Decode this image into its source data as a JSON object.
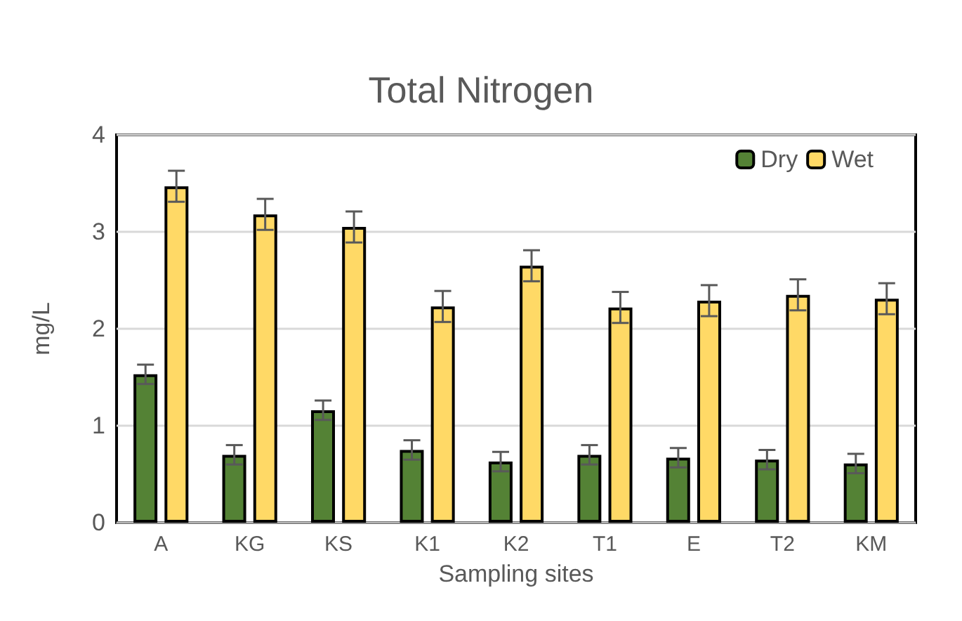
{
  "chart_data": {
    "type": "bar",
    "title": "Total Nitrogen",
    "xlabel": "Sampling sites",
    "ylabel": "mg/L",
    "categories": [
      "A",
      "KG",
      "KS",
      "K1",
      "K2",
      "T1",
      "E",
      "T2",
      "KM"
    ],
    "series": [
      {
        "name": "Dry",
        "color": "#548235",
        "values": [
          1.53,
          0.7,
          1.16,
          0.75,
          0.63,
          0.7,
          0.67,
          0.65,
          0.61
        ],
        "errors": [
          0.1,
          0.1,
          0.1,
          0.1,
          0.1,
          0.1,
          0.1,
          0.1,
          0.1
        ]
      },
      {
        "name": "Wet",
        "color": "#ffd966",
        "values": [
          3.47,
          3.18,
          3.05,
          2.23,
          2.65,
          2.22,
          2.29,
          2.35,
          2.31
        ],
        "errors": [
          0.16,
          0.16,
          0.16,
          0.16,
          0.16,
          0.16,
          0.16,
          0.16,
          0.16
        ]
      }
    ],
    "ylim": [
      0,
      4
    ],
    "yticks": [
      0,
      1,
      2,
      3,
      4
    ],
    "grid": "y",
    "legend": "top right"
  }
}
